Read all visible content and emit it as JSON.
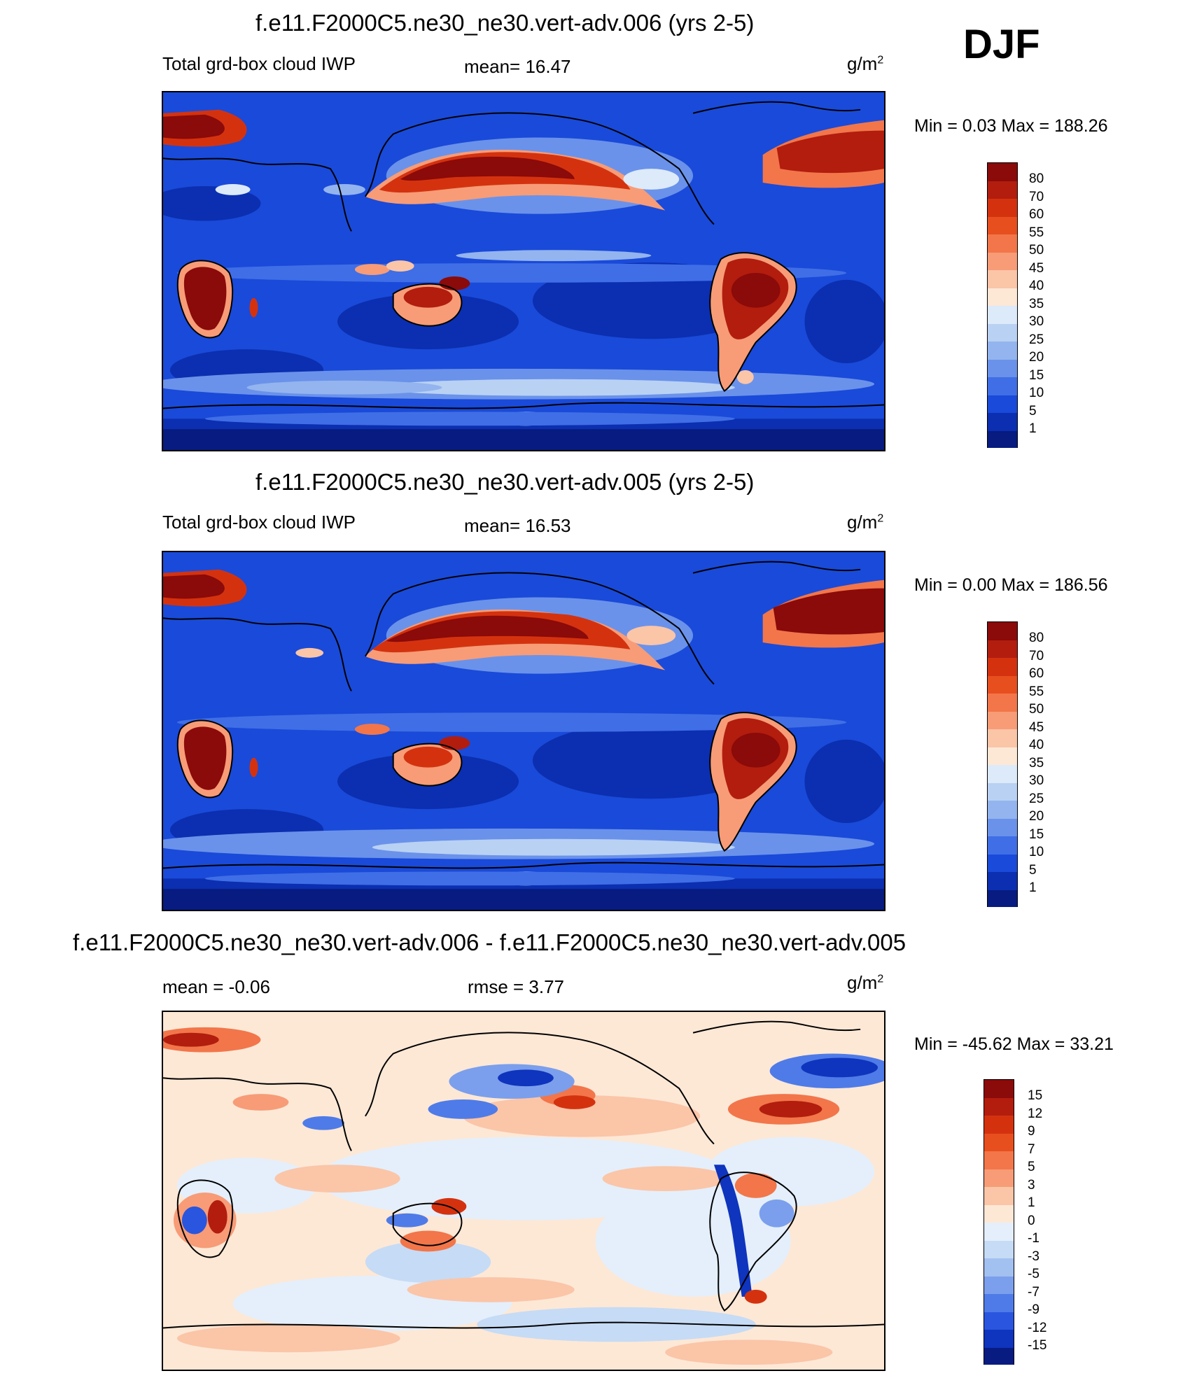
{
  "season": "DJF",
  "panels": [
    {
      "title": "f.e11.F2000C5.ne30_ne30.vert-adv.006 (yrs 2-5)",
      "variable": "Total grd-box cloud IWP",
      "stat_label": "mean=  16.47",
      "units_base": "g/m",
      "units_exp": "2",
      "minmax": "Min =    0.03 Max = 188.26",
      "colorbar": {
        "labels": [
          "80",
          "70",
          "60",
          "55",
          "50",
          "45",
          "40",
          "35",
          "30",
          "25",
          "20",
          "15",
          "10",
          "5",
          "1"
        ],
        "colors": [
          "#8b0a0a",
          "#b21d0e",
          "#d4320f",
          "#e84f1e",
          "#f2764a",
          "#f79c77",
          "#fbc5a8",
          "#fde8d6",
          "#dceaf9",
          "#b9d1f3",
          "#93b4ee",
          "#6a92ea",
          "#3f6ee6",
          "#1a4ad9",
          "#0b2fb0",
          "#071b80"
        ]
      }
    },
    {
      "title": "f.e11.F2000C5.ne30_ne30.vert-adv.005 (yrs 2-5)",
      "variable": "Total grd-box cloud IWP",
      "stat_label": "mean=  16.53",
      "units_base": "g/m",
      "units_exp": "2",
      "minmax": "Min =    0.00 Max = 186.56",
      "colorbar": {
        "labels": [
          "80",
          "70",
          "60",
          "55",
          "50",
          "45",
          "40",
          "35",
          "30",
          "25",
          "20",
          "15",
          "10",
          "5",
          "1"
        ],
        "colors": [
          "#8b0a0a",
          "#b21d0e",
          "#d4320f",
          "#e84f1e",
          "#f2764a",
          "#f79c77",
          "#fbc5a8",
          "#fde8d6",
          "#dceaf9",
          "#b9d1f3",
          "#93b4ee",
          "#6a92ea",
          "#3f6ee6",
          "#1a4ad9",
          "#0b2fb0",
          "#071b80"
        ]
      }
    },
    {
      "title": "f.e11.F2000C5.ne30_ne30.vert-adv.006 - f.e11.F2000C5.ne30_ne30.vert-adv.005",
      "stat_label": "mean =  -0.06",
      "stat2_label": "rmse =    3.77",
      "units_base": "g/m",
      "units_exp": "2",
      "minmax": "Min = -45.62 Max =  33.21",
      "colorbar": {
        "labels": [
          "15",
          "12",
          "9",
          "7",
          "5",
          "3",
          "1",
          "0",
          "-1",
          "-3",
          "-5",
          "-7",
          "-9",
          "-12",
          "-15"
        ],
        "colors": [
          "#8b0a0a",
          "#b21d0e",
          "#d4320f",
          "#e84f1e",
          "#f2764a",
          "#f79c77",
          "#fbc5a8",
          "#fde8d6",
          "#e4effb",
          "#c6dbf5",
          "#a2c0f0",
          "#7b9fec",
          "#4f7be8",
          "#2a55de",
          "#0f34bd",
          "#071b80"
        ]
      }
    }
  ]
}
